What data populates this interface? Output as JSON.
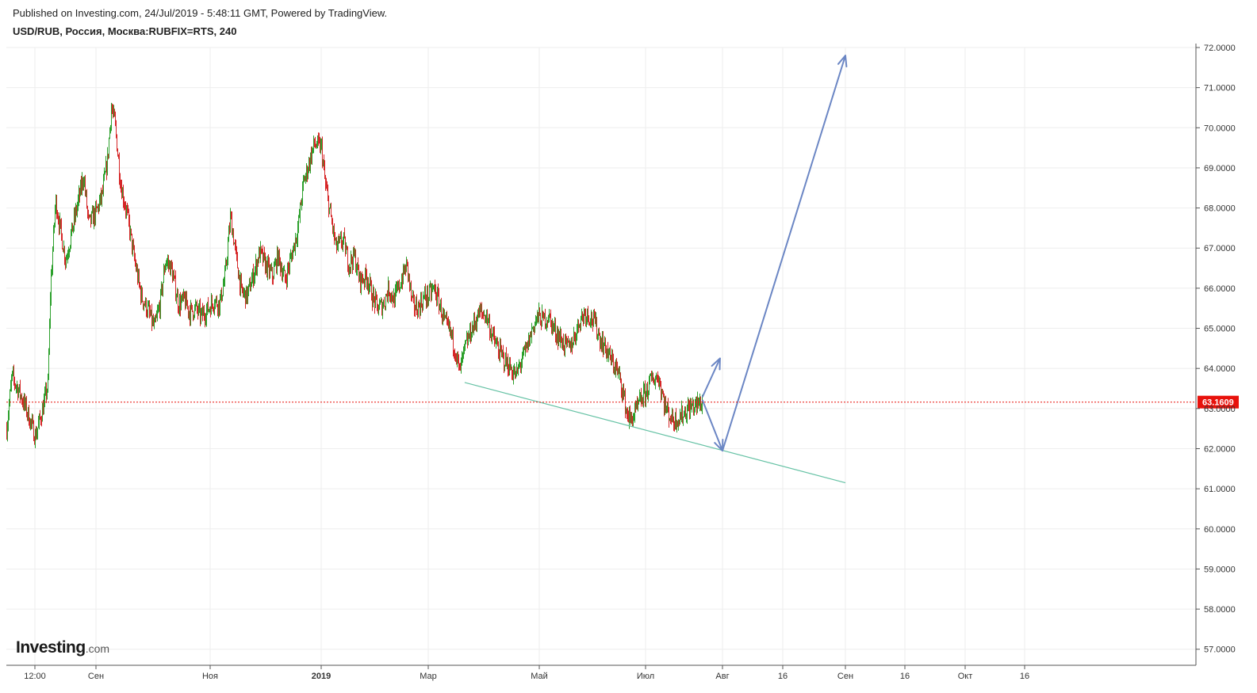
{
  "header": {
    "published": "Published on Investing.com, 24/Jul/2019 - 5:48:11 GMT, Powered by TradingView.",
    "symbol": "USD/RUB, Россия, Москва:RUBFIX=RTS, 240"
  },
  "logo": {
    "main": "Investing",
    "domain": ".com"
  },
  "colors": {
    "up": "#2ca02c",
    "down": "#d62728",
    "price_line": "#e8120c",
    "trendline": "#66c2a5",
    "arrows": "#6b86c4",
    "grid": "#eeeeee",
    "axis": "#555555"
  },
  "chart_data": {
    "type": "candlestick",
    "title": "USD/RUB, Россия, Москва:RUBFIX=RTS, 240",
    "ylim": [
      56.6,
      72.0
    ],
    "y_ticks": [
      "57.0000",
      "58.0000",
      "59.0000",
      "60.0000",
      "61.0000",
      "62.0000",
      "63.0000",
      "64.0000",
      "65.0000",
      "66.0000",
      "67.0000",
      "68.0000",
      "69.0000",
      "70.0000",
      "71.0000",
      "72.0000"
    ],
    "x_ticks": [
      {
        "label": "12:00",
        "date": "2018-08-08"
      },
      {
        "label": "Сен",
        "date": "2018-09-01"
      },
      {
        "label": "Ноя",
        "date": "2018-11-01"
      },
      {
        "label": "2019",
        "date": "2019-01-01",
        "bold": true
      },
      {
        "label": "Мар",
        "date": "2019-03-01"
      },
      {
        "label": "Май",
        "date": "2019-05-01"
      },
      {
        "label": "Июл",
        "date": "2019-07-01"
      },
      {
        "label": "Авг",
        "date": "2019-08-01"
      },
      {
        "label": "16",
        "date": "2019-08-16"
      },
      {
        "label": "Сен",
        "date": "2019-09-01"
      },
      {
        "label": "16",
        "date": "2019-09-16"
      },
      {
        "label": "Окт",
        "date": "2019-10-01"
      },
      {
        "label": "16",
        "date": "2019-10-16"
      }
    ],
    "last_price": 63.1609,
    "last_price_label": "63.1609",
    "price_path": [
      [
        "2018-07-28",
        62.5
      ],
      [
        "2018-07-30",
        63.8
      ],
      [
        "2018-08-02",
        63.4
      ],
      [
        "2018-08-05",
        62.9
      ],
      [
        "2018-08-08",
        62.3
      ],
      [
        "2018-08-11",
        63.0
      ],
      [
        "2018-08-13",
        63.6
      ],
      [
        "2018-08-14",
        66.0
      ],
      [
        "2018-08-16",
        68.2
      ],
      [
        "2018-08-18",
        67.4
      ],
      [
        "2018-08-20",
        66.7
      ],
      [
        "2018-08-23",
        67.6
      ],
      [
        "2018-08-27",
        68.8
      ],
      [
        "2018-08-29",
        67.6
      ],
      [
        "2018-09-01",
        67.9
      ],
      [
        "2018-09-04",
        68.3
      ],
      [
        "2018-09-07",
        69.2
      ],
      [
        "2018-09-09",
        70.5
      ],
      [
        "2018-09-11",
        70.1
      ],
      [
        "2018-09-14",
        68.6
      ],
      [
        "2018-09-18",
        67.7
      ],
      [
        "2018-09-21",
        66.8
      ],
      [
        "2018-09-25",
        65.8
      ],
      [
        "2018-09-29",
        65.4
      ],
      [
        "2018-10-02",
        65.0
      ],
      [
        "2018-10-05",
        65.6
      ],
      [
        "2018-10-08",
        66.7
      ],
      [
        "2018-10-11",
        66.5
      ],
      [
        "2018-10-15",
        65.6
      ],
      [
        "2018-10-18",
        65.7
      ],
      [
        "2018-10-21",
        65.4
      ],
      [
        "2018-10-24",
        65.5
      ],
      [
        "2018-10-27",
        65.3
      ],
      [
        "2018-10-31",
        65.5
      ],
      [
        "2018-11-03",
        65.7
      ],
      [
        "2018-11-06",
        65.6
      ],
      [
        "2018-11-09",
        66.3
      ],
      [
        "2018-11-12",
        67.8
      ],
      [
        "2018-11-15",
        66.8
      ],
      [
        "2018-11-18",
        65.9
      ],
      [
        "2018-11-21",
        65.8
      ],
      [
        "2018-11-25",
        66.4
      ],
      [
        "2018-11-28",
        66.9
      ],
      [
        "2018-12-01",
        66.6
      ],
      [
        "2018-12-05",
        66.3
      ],
      [
        "2018-12-08",
        66.8
      ],
      [
        "2018-12-12",
        66.2
      ],
      [
        "2018-12-16",
        66.9
      ],
      [
        "2018-12-19",
        67.5
      ],
      [
        "2018-12-22",
        68.6
      ],
      [
        "2018-12-25",
        69.1
      ],
      [
        "2018-12-28",
        69.6
      ],
      [
        "2019-01-01",
        69.5
      ],
      [
        "2019-01-03",
        68.6
      ],
      [
        "2019-01-06",
        67.8
      ],
      [
        "2019-01-09",
        67.0
      ],
      [
        "2019-01-13",
        67.2
      ],
      [
        "2019-01-16",
        66.6
      ],
      [
        "2019-01-19",
        66.8
      ],
      [
        "2019-01-22",
        66.2
      ],
      [
        "2019-01-26",
        66.3
      ],
      [
        "2019-01-29",
        65.8
      ],
      [
        "2019-02-01",
        65.5
      ],
      [
        "2019-02-04",
        65.6
      ],
      [
        "2019-02-07",
        66.0
      ],
      [
        "2019-02-10",
        65.7
      ],
      [
        "2019-02-14",
        66.2
      ],
      [
        "2019-02-17",
        66.6
      ],
      [
        "2019-02-20",
        65.6
      ],
      [
        "2019-02-23",
        65.5
      ],
      [
        "2019-02-27",
        65.8
      ],
      [
        "2019-03-01",
        65.8
      ],
      [
        "2019-03-04",
        66.0
      ],
      [
        "2019-03-07",
        65.6
      ],
      [
        "2019-03-10",
        65.1
      ],
      [
        "2019-03-13",
        64.9
      ],
      [
        "2019-03-16",
        64.4
      ],
      [
        "2019-03-18",
        63.9
      ],
      [
        "2019-03-21",
        64.5
      ],
      [
        "2019-03-24",
        64.9
      ],
      [
        "2019-03-27",
        65.2
      ],
      [
        "2019-03-29",
        65.4
      ],
      [
        "2019-04-02",
        65.3
      ],
      [
        "2019-04-05",
        64.8
      ],
      [
        "2019-04-09",
        64.4
      ],
      [
        "2019-04-12",
        64.2
      ],
      [
        "2019-04-15",
        64.0
      ],
      [
        "2019-04-18",
        63.8
      ],
      [
        "2019-04-21",
        64.2
      ],
      [
        "2019-04-24",
        64.5
      ],
      [
        "2019-04-27",
        65.0
      ],
      [
        "2019-04-30",
        65.3
      ],
      [
        "2019-05-03",
        65.2
      ],
      [
        "2019-05-06",
        65.3
      ],
      [
        "2019-05-09",
        65.0
      ],
      [
        "2019-05-12",
        64.8
      ],
      [
        "2019-05-15",
        64.6
      ],
      [
        "2019-05-18",
        64.5
      ],
      [
        "2019-05-21",
        64.8
      ],
      [
        "2019-05-24",
        65.2
      ],
      [
        "2019-05-27",
        65.4
      ],
      [
        "2019-05-30",
        65.3
      ],
      [
        "2019-06-02",
        65.1
      ],
      [
        "2019-06-05",
        64.7
      ],
      [
        "2019-06-08",
        64.5
      ],
      [
        "2019-06-11",
        64.2
      ],
      [
        "2019-06-14",
        64.0
      ],
      [
        "2019-06-17",
        63.6
      ],
      [
        "2019-06-20",
        62.9
      ],
      [
        "2019-06-22",
        62.7
      ],
      [
        "2019-06-25",
        62.9
      ],
      [
        "2019-06-28",
        63.2
      ],
      [
        "2019-07-01",
        63.4
      ],
      [
        "2019-07-03",
        63.7
      ],
      [
        "2019-07-06",
        63.8
      ],
      [
        "2019-07-09",
        63.0
      ],
      [
        "2019-07-12",
        62.7
      ],
      [
        "2019-07-15",
        62.8
      ],
      [
        "2019-07-18",
        63.0
      ],
      [
        "2019-07-22",
        63.1
      ],
      [
        "2019-07-24",
        63.16
      ]
    ],
    "annotations": {
      "trendline": [
        [
          "2019-03-21",
          63.65
        ],
        [
          "2019-09-01",
          61.15
        ]
      ],
      "arrows": [
        [
          [
            "2019-07-24",
            63.3
          ],
          [
            "2019-07-31",
            64.25
          ]
        ],
        [
          [
            "2019-07-24",
            63.2
          ],
          [
            "2019-08-01",
            61.95
          ]
        ],
        [
          [
            "2019-08-01",
            61.95
          ],
          [
            "2019-09-01",
            71.8
          ]
        ]
      ]
    }
  }
}
